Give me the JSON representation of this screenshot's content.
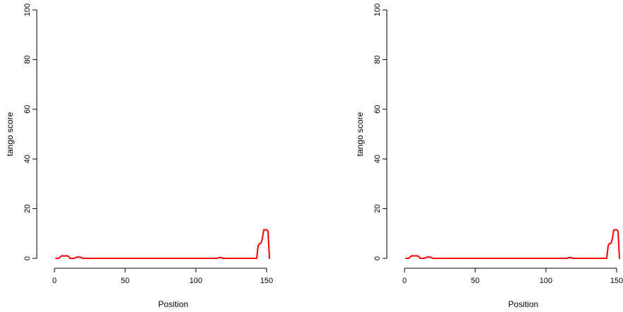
{
  "chart_data": [
    {
      "type": "line",
      "xlabel": "Position",
      "ylabel": "tango score",
      "xlim": [
        0,
        152
      ],
      "ylim": [
        0,
        100
      ],
      "xticks": [
        0,
        50,
        100,
        150
      ],
      "yticks": [
        0,
        20,
        40,
        60,
        80,
        100
      ],
      "grid": false,
      "series_color": "#ff0000",
      "series": [
        {
          "x": [
            1,
            3,
            4,
            5,
            6,
            7,
            8,
            9,
            10,
            11,
            12,
            13,
            14,
            15,
            16,
            17,
            18,
            19,
            20,
            21,
            22,
            30,
            50,
            100,
            114,
            115,
            116,
            117,
            118,
            119,
            120,
            121,
            122,
            130,
            140,
            142,
            143,
            144,
            145,
            146,
            147,
            148,
            149,
            150,
            151,
            152
          ],
          "values": [
            0,
            0,
            0.5,
            1,
            1,
            1,
            1,
            1,
            0.8,
            0,
            0,
            0,
            0,
            0.3,
            0.5,
            0.5,
            0.5,
            0.3,
            0,
            0,
            0,
            0,
            0,
            0,
            0,
            0,
            0.3,
            0.3,
            0.3,
            0,
            0,
            0,
            0,
            0,
            0,
            0,
            0,
            5,
            6,
            6,
            8,
            11.5,
            11.5,
            11.5,
            11,
            0
          ]
        }
      ]
    },
    {
      "type": "line",
      "xlabel": "Position",
      "ylabel": "tango score",
      "xlim": [
        0,
        152
      ],
      "ylim": [
        0,
        100
      ],
      "xticks": [
        0,
        50,
        100,
        150
      ],
      "yticks": [
        0,
        20,
        40,
        60,
        80,
        100
      ],
      "grid": false,
      "series_color": "#ff0000",
      "series": [
        {
          "x": [
            1,
            3,
            4,
            5,
            6,
            7,
            8,
            9,
            10,
            11,
            12,
            13,
            14,
            15,
            16,
            17,
            18,
            19,
            20,
            21,
            22,
            30,
            50,
            100,
            114,
            115,
            116,
            117,
            118,
            119,
            120,
            121,
            122,
            130,
            140,
            142,
            143,
            144,
            145,
            146,
            147,
            148,
            149,
            150,
            151,
            152
          ],
          "values": [
            0,
            0,
            0.5,
            1,
            1,
            1,
            1,
            1,
            0.8,
            0,
            0,
            0,
            0,
            0.3,
            0.5,
            0.5,
            0.5,
            0.3,
            0,
            0,
            0,
            0,
            0,
            0,
            0,
            0,
            0.3,
            0.3,
            0.3,
            0,
            0,
            0,
            0,
            0,
            0,
            0,
            0,
            5,
            6,
            6,
            8,
            11.5,
            11.5,
            11.5,
            11,
            0
          ]
        }
      ]
    }
  ]
}
